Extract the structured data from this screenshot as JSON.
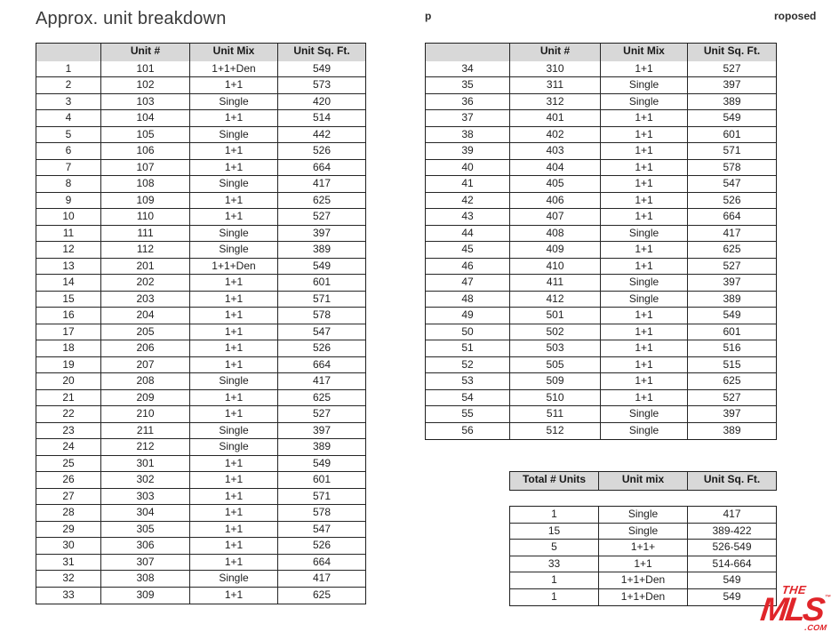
{
  "page": {
    "title": "Approx. unit breakdown",
    "watermark_left": "p",
    "watermark_right": "roposed"
  },
  "unit_tables": {
    "headers": [
      "",
      "Unit #",
      "Unit Mix",
      "Unit Sq. Ft."
    ],
    "left_rows": [
      [
        "1",
        "101",
        "1+1+Den",
        "549"
      ],
      [
        "2",
        "102",
        "1+1",
        "573"
      ],
      [
        "3",
        "103",
        "Single",
        "420"
      ],
      [
        "4",
        "104",
        "1+1",
        "514"
      ],
      [
        "5",
        "105",
        "Single",
        "442"
      ],
      [
        "6",
        "106",
        "1+1",
        "526"
      ],
      [
        "7",
        "107",
        "1+1",
        "664"
      ],
      [
        "8",
        "108",
        "Single",
        "417"
      ],
      [
        "9",
        "109",
        "1+1",
        "625"
      ],
      [
        "10",
        "110",
        "1+1",
        "527"
      ],
      [
        "11",
        "111",
        "Single",
        "397"
      ],
      [
        "12",
        "112",
        "Single",
        "389"
      ],
      [
        "13",
        "201",
        "1+1+Den",
        "549"
      ],
      [
        "14",
        "202",
        "1+1",
        "601"
      ],
      [
        "15",
        "203",
        "1+1",
        "571"
      ],
      [
        "16",
        "204",
        "1+1",
        "578"
      ],
      [
        "17",
        "205",
        "1+1",
        "547"
      ],
      [
        "18",
        "206",
        "1+1",
        "526"
      ],
      [
        "19",
        "207",
        "1+1",
        "664"
      ],
      [
        "20",
        "208",
        "Single",
        "417"
      ],
      [
        "21",
        "209",
        "1+1",
        "625"
      ],
      [
        "22",
        "210",
        "1+1",
        "527"
      ],
      [
        "23",
        "211",
        "Single",
        "397"
      ],
      [
        "24",
        "212",
        "Single",
        "389"
      ],
      [
        "25",
        "301",
        "1+1",
        "549"
      ],
      [
        "26",
        "302",
        "1+1",
        "601"
      ],
      [
        "27",
        "303",
        "1+1",
        "571"
      ],
      [
        "28",
        "304",
        "1+1",
        "578"
      ],
      [
        "29",
        "305",
        "1+1",
        "547"
      ],
      [
        "30",
        "306",
        "1+1",
        "526"
      ],
      [
        "31",
        "307",
        "1+1",
        "664"
      ],
      [
        "32",
        "308",
        "Single",
        "417"
      ],
      [
        "33",
        "309",
        "1+1",
        "625"
      ]
    ],
    "right_rows": [
      [
        "34",
        "310",
        "1+1",
        "527"
      ],
      [
        "35",
        "311",
        "Single",
        "397"
      ],
      [
        "36",
        "312",
        "Single",
        "389"
      ],
      [
        "37",
        "401",
        "1+1",
        "549"
      ],
      [
        "38",
        "402",
        "1+1",
        "601"
      ],
      [
        "39",
        "403",
        "1+1",
        "571"
      ],
      [
        "40",
        "404",
        "1+1",
        "578"
      ],
      [
        "41",
        "405",
        "1+1",
        "547"
      ],
      [
        "42",
        "406",
        "1+1",
        "526"
      ],
      [
        "43",
        "407",
        "1+1",
        "664"
      ],
      [
        "44",
        "408",
        "Single",
        "417"
      ],
      [
        "45",
        "409",
        "1+1",
        "625"
      ],
      [
        "46",
        "410",
        "1+1",
        "527"
      ],
      [
        "47",
        "411",
        "Single",
        "397"
      ],
      [
        "48",
        "412",
        "Single",
        "389"
      ],
      [
        "49",
        "501",
        "1+1",
        "549"
      ],
      [
        "50",
        "502",
        "1+1",
        "601"
      ],
      [
        "51",
        "503",
        "1+1",
        "516"
      ],
      [
        "52",
        "505",
        "1+1",
        "515"
      ],
      [
        "53",
        "509",
        "1+1",
        "625"
      ],
      [
        "54",
        "510",
        "1+1",
        "527"
      ],
      [
        "55",
        "511",
        "Single",
        "397"
      ],
      [
        "56",
        "512",
        "Single",
        "389"
      ]
    ]
  },
  "summary_table": {
    "headers": [
      "Total # Units",
      "Unit mix",
      "Unit Sq. Ft."
    ],
    "rows": [
      [
        "1",
        "Single",
        "417"
      ],
      [
        "15",
        "Single",
        "389-422"
      ],
      [
        "5",
        "1+1+",
        "526-549"
      ],
      [
        "33",
        "1+1",
        "514-664"
      ],
      [
        "1",
        "1+1+Den",
        "549"
      ],
      [
        "1",
        "1+1+Den",
        "549"
      ]
    ]
  },
  "logo": {
    "the": "THE",
    "mls": "MLS",
    "tm": "™",
    "com": ".COM",
    "color": "#e0252a"
  }
}
